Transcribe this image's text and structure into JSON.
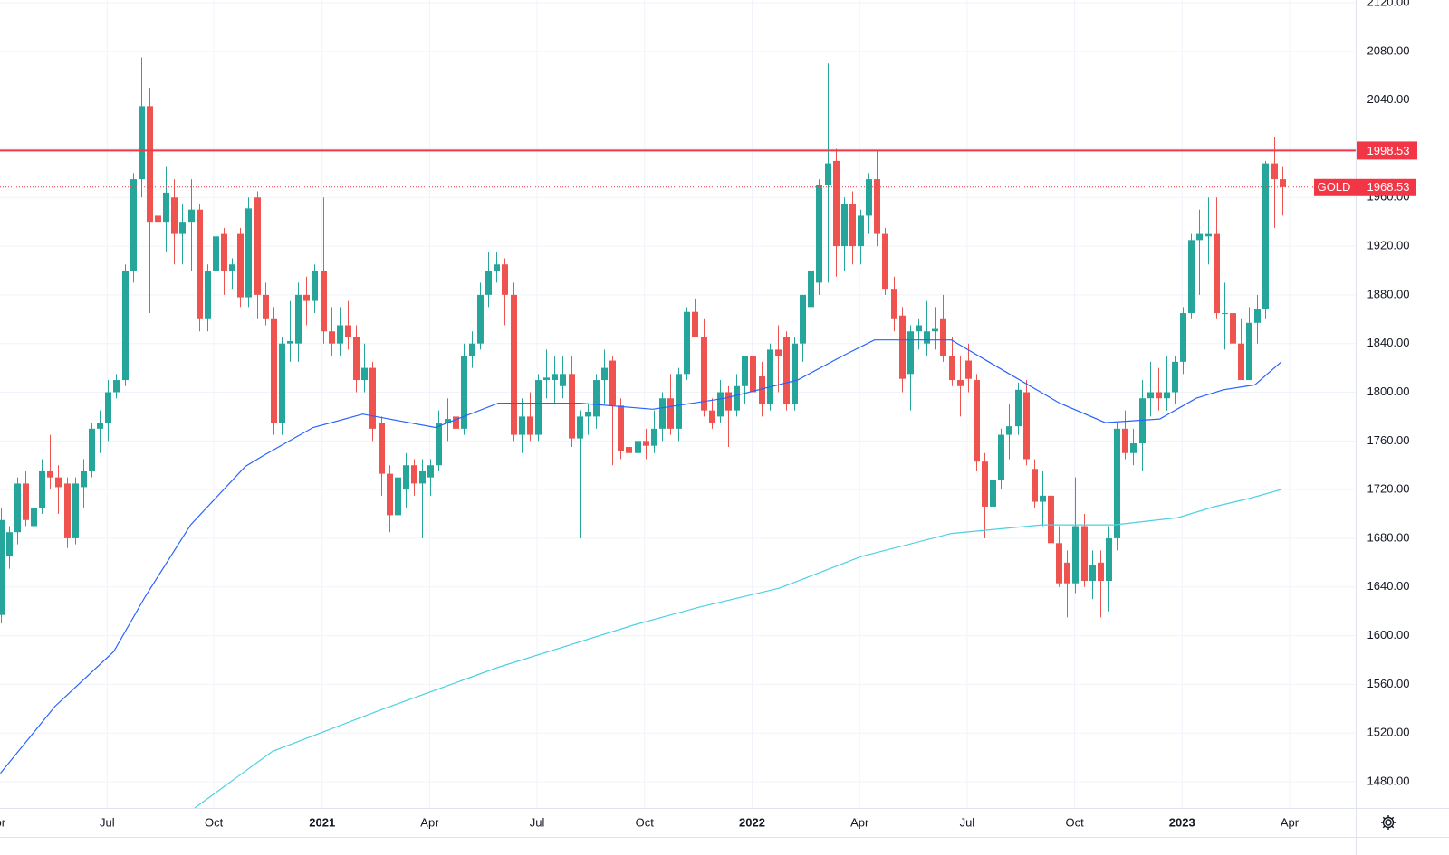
{
  "chart_data": {
    "type": "candlestick",
    "up_color": "#26a69a",
    "down_color": "#ef5350",
    "grid": true,
    "ylim": [
      1480,
      2120
    ],
    "yticks": [
      {
        "value": 1480,
        "label": "1480.00"
      },
      {
        "value": 1520,
        "label": "1520.00"
      },
      {
        "value": 1560,
        "label": "1560.00"
      },
      {
        "value": 1600,
        "label": "1600.00"
      },
      {
        "value": 1640,
        "label": "1640.00"
      },
      {
        "value": 1680,
        "label": "1680.00"
      },
      {
        "value": 1720,
        "label": "1720.00"
      },
      {
        "value": 1760,
        "label": "1760.00"
      },
      {
        "value": 1800,
        "label": "1800.00"
      },
      {
        "value": 1840,
        "label": "1840.00"
      },
      {
        "value": 1880,
        "label": "1880.00"
      },
      {
        "value": 1920,
        "label": "1920.00"
      },
      {
        "value": 1960,
        "label": "1960.00"
      },
      {
        "value": 2000,
        "label": "2000.00"
      },
      {
        "value": 2040,
        "label": "2040.00"
      },
      {
        "value": 2080,
        "label": "2080.00"
      },
      {
        "value": 2120,
        "label": "2120.00"
      }
    ],
    "xlim": [
      -0.06,
      163.9
    ],
    "xticks": [
      {
        "value": -0.5,
        "label": "Apr"
      },
      {
        "value": 12.9,
        "label": "Jul"
      },
      {
        "value": 25.8,
        "label": "Oct"
      },
      {
        "value": 38.9,
        "label": "2021"
      },
      {
        "value": 51.9,
        "label": "Apr"
      },
      {
        "value": 64.9,
        "label": "Jul"
      },
      {
        "value": 77.9,
        "label": "Oct"
      },
      {
        "value": 90.9,
        "label": "2022"
      },
      {
        "value": 103.9,
        "label": "Apr"
      },
      {
        "value": 116.9,
        "label": "Jul"
      },
      {
        "value": 129.9,
        "label": "Oct"
      },
      {
        "value": 142.9,
        "label": "2023"
      },
      {
        "value": 155.9,
        "label": "Apr"
      }
    ],
    "candles": [
      [
        1617,
        1705,
        1610,
        1695
      ],
      [
        1665,
        1690,
        1655,
        1685
      ],
      [
        1685,
        1730,
        1675,
        1725
      ],
      [
        1725,
        1735,
        1690,
        1695
      ],
      [
        1690,
        1715,
        1680,
        1705
      ],
      [
        1705,
        1745,
        1700,
        1735
      ],
      [
        1735,
        1765,
        1720,
        1730
      ],
      [
        1730,
        1740,
        1700,
        1722
      ],
      [
        1725,
        1730,
        1672,
        1680
      ],
      [
        1680,
        1730,
        1675,
        1725
      ],
      [
        1722,
        1745,
        1705,
        1735
      ],
      [
        1735,
        1775,
        1730,
        1770
      ],
      [
        1770,
        1785,
        1750,
        1775
      ],
      [
        1775,
        1810,
        1760,
        1800
      ],
      [
        1800,
        1815,
        1795,
        1810
      ],
      [
        1810,
        1905,
        1805,
        1900
      ],
      [
        1900,
        1980,
        1890,
        1975
      ],
      [
        1975,
        2075,
        1960,
        2035
      ],
      [
        2035,
        2050,
        1865,
        1940
      ],
      [
        1945,
        1990,
        1915,
        1940
      ],
      [
        1940,
        1985,
        1915,
        1964
      ],
      [
        1960,
        1975,
        1905,
        1930
      ],
      [
        1930,
        1955,
        1905,
        1940
      ],
      [
        1940,
        1975,
        1900,
        1950
      ],
      [
        1950,
        1955,
        1850,
        1860
      ],
      [
        1860,
        1905,
        1850,
        1900
      ],
      [
        1900,
        1930,
        1890,
        1928
      ],
      [
        1930,
        1935,
        1880,
        1900
      ],
      [
        1900,
        1910,
        1885,
        1905
      ],
      [
        1930,
        1935,
        1870,
        1878
      ],
      [
        1878,
        1960,
        1870,
        1951
      ],
      [
        1960,
        1965,
        1860,
        1880
      ],
      [
        1880,
        1890,
        1855,
        1860
      ],
      [
        1860,
        1870,
        1765,
        1775
      ],
      [
        1775,
        1845,
        1765,
        1840
      ],
      [
        1840,
        1875,
        1825,
        1842
      ],
      [
        1840,
        1890,
        1825,
        1880
      ],
      [
        1880,
        1895,
        1855,
        1875
      ],
      [
        1875,
        1905,
        1865,
        1900
      ],
      [
        1900,
        1960,
        1840,
        1850
      ],
      [
        1850,
        1870,
        1830,
        1840
      ],
      [
        1840,
        1870,
        1830,
        1855
      ],
      [
        1855,
        1875,
        1835,
        1845
      ],
      [
        1845,
        1855,
        1800,
        1810
      ],
      [
        1810,
        1840,
        1800,
        1820
      ],
      [
        1820,
        1825,
        1760,
        1770
      ],
      [
        1775,
        1780,
        1715,
        1733
      ],
      [
        1733,
        1740,
        1685,
        1699
      ],
      [
        1699,
        1740,
        1680,
        1730
      ],
      [
        1720,
        1750,
        1705,
        1740
      ],
      [
        1740,
        1745,
        1715,
        1725
      ],
      [
        1725,
        1745,
        1680,
        1735
      ],
      [
        1730,
        1745,
        1715,
        1740
      ],
      [
        1740,
        1785,
        1735,
        1775
      ],
      [
        1775,
        1795,
        1760,
        1778
      ],
      [
        1780,
        1790,
        1760,
        1770
      ],
      [
        1770,
        1840,
        1765,
        1830
      ],
      [
        1830,
        1850,
        1820,
        1840
      ],
      [
        1840,
        1890,
        1835,
        1880
      ],
      [
        1880,
        1915,
        1870,
        1900
      ],
      [
        1900,
        1915,
        1890,
        1905
      ],
      [
        1905,
        1910,
        1855,
        1880
      ],
      [
        1880,
        1890,
        1760,
        1765
      ],
      [
        1765,
        1795,
        1750,
        1780
      ],
      [
        1780,
        1800,
        1760,
        1765
      ],
      [
        1765,
        1815,
        1760,
        1810
      ],
      [
        1810,
        1835,
        1795,
        1812
      ],
      [
        1810,
        1830,
        1790,
        1815
      ],
      [
        1805,
        1830,
        1795,
        1815
      ],
      [
        1815,
        1830,
        1755,
        1762
      ],
      [
        1762,
        1785,
        1680,
        1780
      ],
      [
        1780,
        1790,
        1765,
        1784
      ],
      [
        1780,
        1815,
        1770,
        1810
      ],
      [
        1810,
        1835,
        1790,
        1820
      ],
      [
        1826,
        1830,
        1740,
        1789
      ],
      [
        1789,
        1795,
        1745,
        1752
      ],
      [
        1755,
        1765,
        1740,
        1750
      ],
      [
        1750,
        1765,
        1720,
        1760
      ],
      [
        1760,
        1770,
        1745,
        1756
      ],
      [
        1756,
        1785,
        1750,
        1770
      ],
      [
        1770,
        1800,
        1760,
        1795
      ],
      [
        1795,
        1815,
        1765,
        1770
      ],
      [
        1770,
        1820,
        1760,
        1815
      ],
      [
        1815,
        1870,
        1810,
        1866
      ],
      [
        1866,
        1877,
        1845,
        1845
      ],
      [
        1845,
        1860,
        1780,
        1785
      ],
      [
        1785,
        1795,
        1770,
        1775
      ],
      [
        1780,
        1810,
        1775,
        1800
      ],
      [
        1800,
        1805,
        1755,
        1785
      ],
      [
        1785,
        1815,
        1780,
        1805
      ],
      [
        1805,
        1830,
        1790,
        1830
      ],
      [
        1830,
        1830,
        1790,
        1800
      ],
      [
        1813,
        1825,
        1780,
        1790
      ],
      [
        1790,
        1840,
        1785,
        1835
      ],
      [
        1835,
        1855,
        1800,
        1830
      ],
      [
        1845,
        1850,
        1785,
        1790
      ],
      [
        1790,
        1845,
        1785,
        1840
      ],
      [
        1840,
        1880,
        1825,
        1880
      ],
      [
        1870,
        1910,
        1860,
        1900
      ],
      [
        1890,
        1975,
        1880,
        1970
      ],
      [
        1970,
        2070,
        1890,
        1988
      ],
      [
        1990,
        2000,
        1895,
        1920
      ],
      [
        1920,
        1960,
        1900,
        1955
      ],
      [
        1955,
        1965,
        1905,
        1920
      ],
      [
        1920,
        1950,
        1905,
        1945
      ],
      [
        1945,
        1980,
        1930,
        1975
      ],
      [
        1975,
        1998,
        1920,
        1930
      ],
      [
        1930,
        1935,
        1880,
        1885
      ],
      [
        1885,
        1895,
        1850,
        1860
      ],
      [
        1863,
        1870,
        1800,
        1811
      ],
      [
        1815,
        1855,
        1785,
        1850
      ],
      [
        1850,
        1860,
        1835,
        1855
      ],
      [
        1840,
        1875,
        1830,
        1850
      ],
      [
        1850,
        1870,
        1835,
        1852
      ],
      [
        1860,
        1880,
        1825,
        1830
      ],
      [
        1830,
        1845,
        1805,
        1810
      ],
      [
        1810,
        1830,
        1780,
        1805
      ],
      [
        1826,
        1840,
        1800,
        1811
      ],
      [
        1810,
        1815,
        1735,
        1743
      ],
      [
        1743,
        1750,
        1680,
        1706
      ],
      [
        1706,
        1740,
        1690,
        1728
      ],
      [
        1728,
        1770,
        1720,
        1765
      ],
      [
        1765,
        1790,
        1745,
        1772
      ],
      [
        1772,
        1808,
        1765,
        1802
      ],
      [
        1800,
        1810,
        1740,
        1745
      ],
      [
        1737,
        1745,
        1705,
        1710
      ],
      [
        1710,
        1735,
        1690,
        1715
      ],
      [
        1715,
        1725,
        1670,
        1676
      ],
      [
        1676,
        1690,
        1640,
        1643
      ],
      [
        1660,
        1670,
        1615,
        1643
      ],
      [
        1643,
        1730,
        1635,
        1690
      ],
      [
        1690,
        1700,
        1640,
        1645
      ],
      [
        1645,
        1670,
        1630,
        1658
      ],
      [
        1660,
        1670,
        1615,
        1645
      ],
      [
        1645,
        1690,
        1620,
        1680
      ],
      [
        1680,
        1775,
        1670,
        1770
      ],
      [
        1770,
        1785,
        1745,
        1750
      ],
      [
        1750,
        1770,
        1740,
        1758
      ],
      [
        1758,
        1810,
        1735,
        1795
      ],
      [
        1795,
        1825,
        1780,
        1800
      ],
      [
        1800,
        1820,
        1785,
        1795
      ],
      [
        1795,
        1830,
        1785,
        1800
      ],
      [
        1800,
        1830,
        1790,
        1825
      ],
      [
        1825,
        1870,
        1815,
        1865
      ],
      [
        1865,
        1930,
        1860,
        1925
      ],
      [
        1925,
        1950,
        1880,
        1930
      ],
      [
        1928,
        1960,
        1905,
        1930
      ],
      [
        1930,
        1960,
        1860,
        1865
      ],
      [
        1865,
        1890,
        1835,
        1865
      ],
      [
        1865,
        1870,
        1820,
        1840
      ],
      [
        1840,
        1860,
        1810,
        1810
      ],
      [
        1810,
        1870,
        1810,
        1857
      ],
      [
        1857,
        1880,
        1840,
        1868
      ],
      [
        1868,
        1990,
        1860,
        1988
      ],
      [
        1988,
        2010,
        1935,
        1975
      ],
      [
        1975,
        1985,
        1945,
        1968.53
      ]
    ],
    "series": [
      {
        "color": "#2962ff",
        "x": [
          0,
          6.6,
          13.7,
          17.5,
          23,
          29.6,
          31.8,
          37.8,
          43.8,
          52.6,
          60.2,
          70.1,
          78.9,
          87.6,
          96.4,
          101.9,
          105.7,
          115,
          120.5,
          128.1,
          133.6,
          140.2,
          144.6,
          147.9,
          151.7,
          154.9
        ],
        "values": [
          1487,
          1542,
          1587,
          1632,
          1691,
          1739,
          1748,
          1771,
          1782,
          1771,
          1791,
          1791,
          1786,
          1795,
          1810,
          1830,
          1843,
          1843,
          1821,
          1791,
          1775,
          1778,
          1795,
          1802,
          1806,
          1825
        ]
      },
      {
        "color": "#4dd0e1",
        "x": [
          23.5,
          32.9,
          46,
          60.2,
          76.7,
          84.3,
          94.2,
          104.1,
          115,
          126,
          134.7,
          142.4,
          146.8,
          151.2,
          154.9
        ],
        "values": [
          1458.5,
          1505,
          1539,
          1574,
          1609,
          1623,
          1639,
          1665,
          1684,
          1691,
          1691,
          1697,
          1706,
          1713,
          1720
        ]
      }
    ],
    "hline": {
      "value": 1998.53,
      "color": "#f23645"
    },
    "price_line": {
      "name": "GOLD",
      "value": 1968.53,
      "color": "#f23645"
    }
  }
}
